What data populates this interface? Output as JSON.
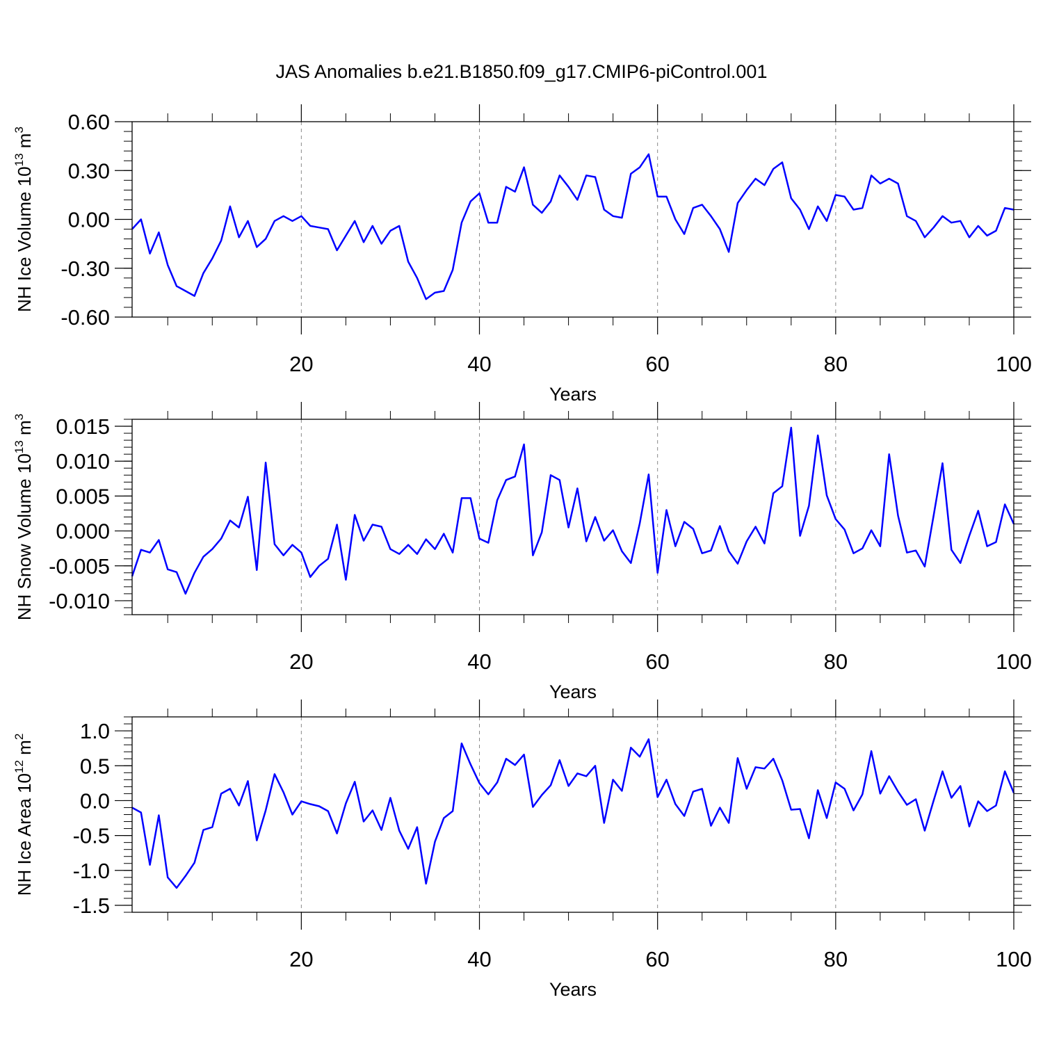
{
  "title": "JAS Anomalies b.e21.B1850.f09_g17.CMIP6-piControl.001",
  "chart_data": [
    {
      "type": "line",
      "ylabel": "NH Ice Volume 10",
      "ylabel_exp": "13",
      "ylabel_unit": " m",
      "ylabel_unit_exp": "3",
      "xlabel": "Years",
      "xlim": [
        1,
        100
      ],
      "ylim": [
        -0.6,
        0.6
      ],
      "yticks": [
        -0.6,
        -0.3,
        0.0,
        0.3,
        0.6
      ],
      "ytick_labels": [
        "-0.60",
        "-0.30",
        "0.00",
        "0.30",
        "0.60"
      ],
      "xticks": [
        20,
        40,
        60,
        80,
        100
      ],
      "xtick_labels": [
        "20",
        "40",
        "60",
        "80",
        "100"
      ],
      "line_color": "#0000ff",
      "x_start": 1,
      "values": [
        -0.06,
        0.0,
        -0.21,
        -0.08,
        -0.28,
        -0.41,
        -0.44,
        -0.47,
        -0.33,
        -0.24,
        -0.13,
        0.08,
        -0.11,
        -0.01,
        -0.17,
        -0.12,
        -0.01,
        0.02,
        -0.01,
        0.02,
        -0.04,
        -0.05,
        -0.06,
        -0.19,
        -0.1,
        -0.01,
        -0.14,
        -0.04,
        -0.15,
        -0.07,
        -0.04,
        -0.26,
        -0.36,
        -0.49,
        -0.45,
        -0.44,
        -0.31,
        -0.02,
        0.11,
        0.16,
        -0.02,
        -0.02,
        0.2,
        0.17,
        0.32,
        0.09,
        0.04,
        0.11,
        0.27,
        0.2,
        0.12,
        0.27,
        0.26,
        0.06,
        0.02,
        0.01,
        0.28,
        0.32,
        0.4,
        0.14,
        0.14,
        0.0,
        -0.09,
        0.07,
        0.09,
        0.02,
        -0.06,
        -0.2,
        0.1,
        0.18,
        0.25,
        0.21,
        0.31,
        0.35,
        0.13,
        0.06,
        -0.06,
        0.08,
        -0.01,
        0.15,
        0.14,
        0.06,
        0.07,
        0.27,
        0.22,
        0.25,
        0.22,
        0.02,
        -0.01,
        -0.11,
        -0.05,
        0.02,
        -0.02,
        -0.01,
        -0.11,
        -0.04,
        -0.1,
        -0.07,
        0.07,
        0.06
      ]
    },
    {
      "type": "line",
      "ylabel": "NH Snow Volume 10",
      "ylabel_exp": "13",
      "ylabel_unit": " m",
      "ylabel_unit_exp": "3",
      "xlabel": "Years",
      "xlim": [
        1,
        100
      ],
      "ylim": [
        -0.012,
        0.016
      ],
      "yticks": [
        -0.01,
        -0.005,
        0.0,
        0.005,
        0.01,
        0.015
      ],
      "ytick_labels": [
        "-0.010",
        "-0.005",
        "0.000",
        "0.005",
        "0.010",
        "0.015"
      ],
      "xticks": [
        20,
        40,
        60,
        80,
        100
      ],
      "xtick_labels": [
        "20",
        "40",
        "60",
        "80",
        "100"
      ],
      "line_color": "#0000ff",
      "x_start": 1,
      "values": [
        -0.0065,
        -0.0027,
        -0.0031,
        -0.0013,
        -0.0055,
        -0.0059,
        -0.009,
        -0.006,
        -0.0037,
        -0.0026,
        -0.0011,
        0.0015,
        0.0005,
        0.0049,
        -0.0056,
        0.0098,
        -0.0019,
        -0.0035,
        -0.002,
        -0.0031,
        -0.0066,
        -0.005,
        -0.004,
        0.0009,
        -0.007,
        0.0023,
        -0.0014,
        0.0009,
        0.0006,
        -0.0026,
        -0.0033,
        -0.002,
        -0.0033,
        -0.0012,
        -0.0026,
        -0.0004,
        -0.0031,
        0.0047,
        0.0047,
        -0.0011,
        -0.0017,
        0.0044,
        0.0073,
        0.0078,
        0.0124,
        -0.0035,
        -0.0002,
        0.008,
        0.0073,
        0.0005,
        0.0061,
        -0.0015,
        0.002,
        -0.0014,
        0.0001,
        -0.0029,
        -0.0046,
        0.0011,
        0.0081,
        -0.006,
        0.003,
        -0.0022,
        0.0013,
        0.0003,
        -0.0032,
        -0.0028,
        0.0007,
        -0.0029,
        -0.0047,
        -0.0015,
        0.0006,
        -0.0018,
        0.0054,
        0.0064,
        0.0148,
        -0.0007,
        0.0036,
        0.0137,
        0.0051,
        0.0017,
        0.0002,
        -0.0032,
        -0.0025,
        0.0001,
        -0.0022,
        0.011,
        0.0022,
        -0.0031,
        -0.0028,
        -0.0051,
        0.0022,
        0.0097,
        -0.0027,
        -0.0046,
        -0.0007,
        0.0029,
        -0.0022,
        -0.0016,
        0.0038,
        0.001
      ]
    },
    {
      "type": "line",
      "ylabel": "NH Ice Area 10",
      "ylabel_exp": "12",
      "ylabel_unit": " m",
      "ylabel_unit_exp": "2",
      "xlabel": "Years",
      "xlim": [
        1,
        100
      ],
      "ylim": [
        -1.6,
        1.2
      ],
      "yticks": [
        -1.5,
        -1.0,
        -0.5,
        0.0,
        0.5,
        1.0
      ],
      "ytick_labels": [
        "-1.5",
        "-1.0",
        "-0.5",
        "0.0",
        "0.5",
        "1.0"
      ],
      "xticks": [
        20,
        40,
        60,
        80,
        100
      ],
      "xtick_labels": [
        "20",
        "40",
        "60",
        "80",
        "100"
      ],
      "line_color": "#0000ff",
      "x_start": 1,
      "values": [
        -0.1,
        -0.17,
        -0.92,
        -0.21,
        -1.1,
        -1.25,
        -1.08,
        -0.89,
        -0.42,
        -0.38,
        0.1,
        0.17,
        -0.07,
        0.28,
        -0.57,
        -0.14,
        0.38,
        0.12,
        -0.2,
        -0.01,
        -0.05,
        -0.08,
        -0.15,
        -0.47,
        -0.04,
        0.27,
        -0.3,
        -0.14,
        -0.42,
        0.04,
        -0.43,
        -0.69,
        -0.38,
        -1.19,
        -0.59,
        -0.25,
        -0.15,
        0.82,
        0.52,
        0.25,
        0.09,
        0.26,
        0.6,
        0.51,
        0.66,
        -0.09,
        0.08,
        0.22,
        0.58,
        0.21,
        0.39,
        0.35,
        0.5,
        -0.32,
        0.3,
        0.14,
        0.76,
        0.63,
        0.88,
        0.05,
        0.3,
        -0.05,
        -0.22,
        0.13,
        0.17,
        -0.36,
        -0.1,
        -0.32,
        0.61,
        0.17,
        0.48,
        0.46,
        0.6,
        0.29,
        -0.13,
        -0.12,
        -0.54,
        0.15,
        -0.25,
        0.26,
        0.17,
        -0.14,
        0.09,
        0.71,
        0.1,
        0.35,
        0.13,
        -0.06,
        0.02,
        -0.43,
        0.0,
        0.42,
        0.04,
        0.21,
        -0.37,
        -0.01,
        -0.15,
        -0.07,
        0.42,
        0.11
      ]
    }
  ]
}
